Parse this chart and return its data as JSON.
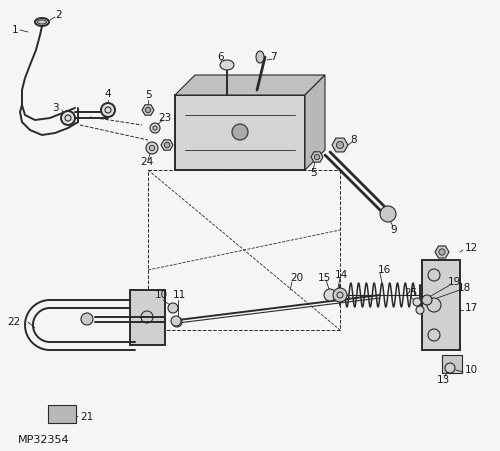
{
  "bg_color": "#f5f5f5",
  "line_color": "#2a2a2a",
  "model_text": "MP32354"
}
